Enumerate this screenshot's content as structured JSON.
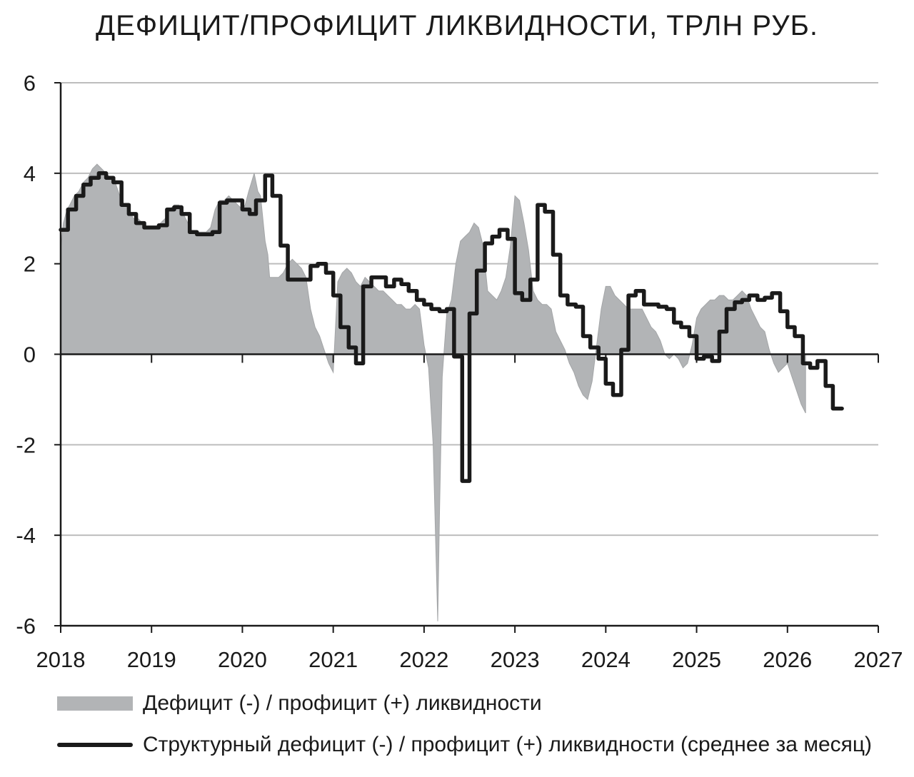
{
  "chart_data": {
    "type": "area",
    "title": "ДЕФИЦИТ/ПРОФИЦИТ ЛИКВИДНОСТИ, ТРЛН РУБ.",
    "xlabel": "",
    "ylabel": "",
    "xlim": [
      2018,
      2027
    ],
    "ylim": [
      -6,
      6
    ],
    "x_ticks": [
      "2018",
      "2019",
      "2020",
      "2021",
      "2022",
      "2023",
      "2024",
      "2025",
      "2026",
      "2027"
    ],
    "y_ticks": [
      "6",
      "4",
      "2",
      "0",
      "-2",
      "-4",
      "-6"
    ],
    "grid": "horizontal",
    "legend_position": "bottom",
    "colors": {
      "area": "#b2b4b6",
      "line": "#1a1a1a",
      "grid": "#bdbdbd",
      "axis": "#1a1a1a"
    },
    "series": [
      {
        "name": "Дефицит (-) / профицит (+) ликвидности",
        "type": "area",
        "points": [
          [
            2018.0,
            2.3
          ],
          [
            2018.03,
            2.9
          ],
          [
            2018.07,
            3.2
          ],
          [
            2018.1,
            3.3
          ],
          [
            2018.15,
            3.5
          ],
          [
            2018.2,
            3.6
          ],
          [
            2018.25,
            3.8
          ],
          [
            2018.3,
            3.9
          ],
          [
            2018.35,
            4.1
          ],
          [
            2018.4,
            4.2
          ],
          [
            2018.45,
            4.1
          ],
          [
            2018.5,
            4.0
          ],
          [
            2018.55,
            3.9
          ],
          [
            2018.6,
            3.8
          ],
          [
            2018.65,
            3.5
          ],
          [
            2018.7,
            3.3
          ],
          [
            2018.75,
            3.2
          ],
          [
            2018.8,
            3.0
          ],
          [
            2018.85,
            3.0
          ],
          [
            2018.9,
            2.9
          ],
          [
            2018.95,
            2.8
          ],
          [
            2019.0,
            2.8
          ],
          [
            2019.05,
            2.8
          ],
          [
            2019.1,
            2.9
          ],
          [
            2019.15,
            3.0
          ],
          [
            2019.2,
            3.2
          ],
          [
            2019.25,
            3.3
          ],
          [
            2019.3,
            3.3
          ],
          [
            2019.35,
            3.1
          ],
          [
            2019.4,
            2.9
          ],
          [
            2019.45,
            2.7
          ],
          [
            2019.5,
            2.7
          ],
          [
            2019.55,
            2.7
          ],
          [
            2019.6,
            2.7
          ],
          [
            2019.65,
            2.8
          ],
          [
            2019.7,
            3.2
          ],
          [
            2019.75,
            3.4
          ],
          [
            2019.8,
            3.4
          ],
          [
            2019.85,
            3.5
          ],
          [
            2019.9,
            3.4
          ],
          [
            2019.95,
            3.3
          ],
          [
            2020.0,
            3.2
          ],
          [
            2020.03,
            3.3
          ],
          [
            2020.07,
            3.6
          ],
          [
            2020.1,
            3.8
          ],
          [
            2020.13,
            4.0
          ],
          [
            2020.17,
            3.6
          ],
          [
            2020.2,
            3.5
          ],
          [
            2020.25,
            2.5
          ],
          [
            2020.28,
            2.2
          ],
          [
            2020.3,
            1.7
          ],
          [
            2020.35,
            1.7
          ],
          [
            2020.4,
            1.7
          ],
          [
            2020.45,
            1.8
          ],
          [
            2020.5,
            2.0
          ],
          [
            2020.55,
            2.1
          ],
          [
            2020.6,
            2.0
          ],
          [
            2020.65,
            1.9
          ],
          [
            2020.7,
            1.7
          ],
          [
            2020.75,
            1.0
          ],
          [
            2020.8,
            0.6
          ],
          [
            2020.85,
            0.4
          ],
          [
            2020.9,
            0.1
          ],
          [
            2020.95,
            -0.2
          ],
          [
            2021.0,
            -0.4
          ],
          [
            2021.02,
            0.4
          ],
          [
            2021.05,
            1.6
          ],
          [
            2021.1,
            1.8
          ],
          [
            2021.15,
            1.9
          ],
          [
            2021.2,
            1.8
          ],
          [
            2021.25,
            1.6
          ],
          [
            2021.3,
            1.5
          ],
          [
            2021.35,
            1.7
          ],
          [
            2021.4,
            1.6
          ],
          [
            2021.45,
            1.5
          ],
          [
            2021.5,
            1.4
          ],
          [
            2021.55,
            1.4
          ],
          [
            2021.6,
            1.3
          ],
          [
            2021.65,
            1.2
          ],
          [
            2021.7,
            1.1
          ],
          [
            2021.75,
            1.1
          ],
          [
            2021.8,
            1.0
          ],
          [
            2021.85,
            1.0
          ],
          [
            2021.9,
            1.1
          ],
          [
            2021.95,
            1.0
          ],
          [
            2022.0,
            0.2
          ],
          [
            2022.05,
            -0.3
          ],
          [
            2022.1,
            -2.0
          ],
          [
            2022.15,
            -5.9
          ],
          [
            2022.17,
            -3.5
          ],
          [
            2022.2,
            -0.5
          ],
          [
            2022.25,
            0.9
          ],
          [
            2022.3,
            1.2
          ],
          [
            2022.35,
            2.0
          ],
          [
            2022.4,
            2.5
          ],
          [
            2022.45,
            2.6
          ],
          [
            2022.5,
            2.7
          ],
          [
            2022.55,
            2.9
          ],
          [
            2022.6,
            2.8
          ],
          [
            2022.65,
            2.4
          ],
          [
            2022.7,
            1.4
          ],
          [
            2022.75,
            1.3
          ],
          [
            2022.8,
            1.2
          ],
          [
            2022.85,
            1.4
          ],
          [
            2022.9,
            1.7
          ],
          [
            2022.95,
            2.4
          ],
          [
            2023.0,
            3.5
          ],
          [
            2023.05,
            3.4
          ],
          [
            2023.1,
            2.9
          ],
          [
            2023.15,
            2.3
          ],
          [
            2023.2,
            1.4
          ],
          [
            2023.25,
            1.2
          ],
          [
            2023.3,
            1.1
          ],
          [
            2023.35,
            1.1
          ],
          [
            2023.4,
            1.0
          ],
          [
            2023.45,
            0.5
          ],
          [
            2023.5,
            0.3
          ],
          [
            2023.55,
            0.1
          ],
          [
            2023.6,
            -0.2
          ],
          [
            2023.65,
            -0.4
          ],
          [
            2023.7,
            -0.7
          ],
          [
            2023.75,
            -0.9
          ],
          [
            2023.8,
            -1.0
          ],
          [
            2023.85,
            -0.6
          ],
          [
            2023.9,
            0.2
          ],
          [
            2023.95,
            1.0
          ],
          [
            2024.0,
            1.5
          ],
          [
            2024.05,
            1.5
          ],
          [
            2024.1,
            1.3
          ],
          [
            2024.15,
            1.2
          ],
          [
            2024.2,
            1.1
          ],
          [
            2024.25,
            1.0
          ],
          [
            2024.3,
            1.0
          ],
          [
            2024.35,
            1.0
          ],
          [
            2024.4,
            1.0
          ],
          [
            2024.45,
            0.8
          ],
          [
            2024.5,
            0.6
          ],
          [
            2024.55,
            0.5
          ],
          [
            2024.6,
            0.3
          ],
          [
            2024.65,
            0.0
          ],
          [
            2024.7,
            -0.1
          ],
          [
            2024.75,
            0.0
          ],
          [
            2024.8,
            -0.1
          ],
          [
            2024.85,
            -0.3
          ],
          [
            2024.9,
            -0.2
          ],
          [
            2024.95,
            0.2
          ],
          [
            2025.0,
            0.8
          ],
          [
            2025.05,
            1.0
          ],
          [
            2025.1,
            1.1
          ],
          [
            2025.15,
            1.2
          ],
          [
            2025.2,
            1.2
          ],
          [
            2025.25,
            1.3
          ],
          [
            2025.3,
            1.3
          ],
          [
            2025.35,
            1.2
          ],
          [
            2025.4,
            1.2
          ],
          [
            2025.45,
            1.3
          ],
          [
            2025.5,
            1.4
          ],
          [
            2025.55,
            1.3
          ],
          [
            2025.6,
            1.0
          ],
          [
            2025.65,
            0.8
          ],
          [
            2025.7,
            0.6
          ],
          [
            2025.75,
            0.5
          ],
          [
            2025.8,
            0.1
          ],
          [
            2025.85,
            -0.2
          ],
          [
            2025.9,
            -0.4
          ],
          [
            2025.95,
            -0.3
          ],
          [
            2026.0,
            -0.2
          ],
          [
            2026.05,
            -0.5
          ],
          [
            2026.1,
            -0.8
          ],
          [
            2026.15,
            -1.1
          ],
          [
            2026.2,
            -1.3
          ]
        ]
      },
      {
        "name": "Структурный дефицит (-) / профицит (+) ликвидности (среднее за месяц)",
        "type": "step",
        "points": [
          [
            2018.0,
            2.75
          ],
          [
            2018.08,
            3.2
          ],
          [
            2018.17,
            3.5
          ],
          [
            2018.25,
            3.75
          ],
          [
            2018.33,
            3.9
          ],
          [
            2018.42,
            4.0
          ],
          [
            2018.5,
            3.9
          ],
          [
            2018.58,
            3.8
          ],
          [
            2018.67,
            3.3
          ],
          [
            2018.75,
            3.1
          ],
          [
            2018.83,
            2.9
          ],
          [
            2018.92,
            2.8
          ],
          [
            2019.0,
            2.8
          ],
          [
            2019.08,
            2.85
          ],
          [
            2019.17,
            3.2
          ],
          [
            2019.25,
            3.25
          ],
          [
            2019.33,
            3.1
          ],
          [
            2019.42,
            2.7
          ],
          [
            2019.5,
            2.65
          ],
          [
            2019.58,
            2.65
          ],
          [
            2019.67,
            2.7
          ],
          [
            2019.75,
            3.35
          ],
          [
            2019.83,
            3.4
          ],
          [
            2019.92,
            3.4
          ],
          [
            2020.0,
            3.2
          ],
          [
            2020.08,
            3.1
          ],
          [
            2020.15,
            3.4
          ],
          [
            2020.25,
            3.95
          ],
          [
            2020.33,
            3.5
          ],
          [
            2020.42,
            2.4
          ],
          [
            2020.5,
            1.65
          ],
          [
            2020.58,
            1.65
          ],
          [
            2020.67,
            1.65
          ],
          [
            2020.75,
            1.95
          ],
          [
            2020.83,
            2.0
          ],
          [
            2020.92,
            1.8
          ],
          [
            2021.0,
            1.3
          ],
          [
            2021.08,
            0.6
          ],
          [
            2021.17,
            0.15
          ],
          [
            2021.25,
            -0.2
          ],
          [
            2021.33,
            1.5
          ],
          [
            2021.42,
            1.7
          ],
          [
            2021.5,
            1.7
          ],
          [
            2021.58,
            1.5
          ],
          [
            2021.67,
            1.65
          ],
          [
            2021.75,
            1.55
          ],
          [
            2021.83,
            1.4
          ],
          [
            2021.92,
            1.2
          ],
          [
            2022.0,
            1.1
          ],
          [
            2022.08,
            1.0
          ],
          [
            2022.17,
            0.95
          ],
          [
            2022.25,
            1.0
          ],
          [
            2022.33,
            -0.05
          ],
          [
            2022.42,
            -2.8
          ],
          [
            2022.5,
            0.9
          ],
          [
            2022.58,
            1.85
          ],
          [
            2022.67,
            2.45
          ],
          [
            2022.75,
            2.6
          ],
          [
            2022.83,
            2.75
          ],
          [
            2022.92,
            2.55
          ],
          [
            2023.0,
            1.35
          ],
          [
            2023.08,
            1.2
          ],
          [
            2023.17,
            1.65
          ],
          [
            2023.25,
            3.3
          ],
          [
            2023.33,
            3.15
          ],
          [
            2023.42,
            2.2
          ],
          [
            2023.5,
            1.3
          ],
          [
            2023.58,
            1.1
          ],
          [
            2023.67,
            1.05
          ],
          [
            2023.75,
            0.4
          ],
          [
            2023.83,
            0.15
          ],
          [
            2023.92,
            -0.1
          ],
          [
            2024.0,
            -0.65
          ],
          [
            2024.08,
            -0.9
          ],
          [
            2024.17,
            0.1
          ],
          [
            2024.25,
            1.3
          ],
          [
            2024.33,
            1.4
          ],
          [
            2024.42,
            1.1
          ],
          [
            2024.5,
            1.1
          ],
          [
            2024.58,
            1.05
          ],
          [
            2024.67,
            1.0
          ],
          [
            2024.75,
            0.7
          ],
          [
            2024.83,
            0.6
          ],
          [
            2024.92,
            0.4
          ],
          [
            2025.0,
            -0.1
          ],
          [
            2025.08,
            -0.05
          ],
          [
            2025.17,
            -0.15
          ],
          [
            2025.25,
            0.5
          ],
          [
            2025.33,
            1.0
          ],
          [
            2025.42,
            1.15
          ],
          [
            2025.5,
            1.2
          ],
          [
            2025.58,
            1.3
          ],
          [
            2025.67,
            1.2
          ],
          [
            2025.75,
            1.25
          ],
          [
            2025.83,
            1.35
          ],
          [
            2025.92,
            0.95
          ],
          [
            2026.0,
            0.6
          ],
          [
            2026.08,
            0.4
          ],
          [
            2026.17,
            -0.2
          ],
          [
            2026.25,
            -0.3
          ],
          [
            2026.33,
            -0.15
          ],
          [
            2026.42,
            -0.7
          ],
          [
            2026.5,
            -1.2
          ],
          [
            2026.6,
            -1.2
          ]
        ]
      }
    ]
  }
}
